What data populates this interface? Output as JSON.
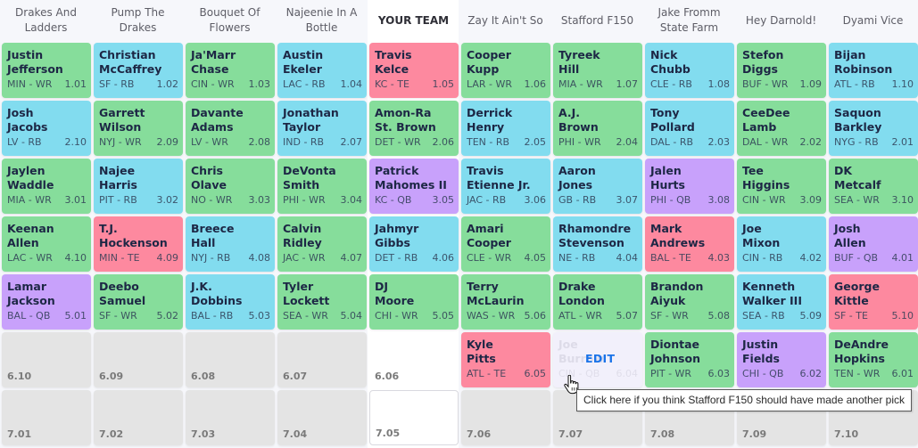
{
  "colors": {
    "WR": "#86dd9b",
    "RB": "#82dcef",
    "TE": "#fd899f",
    "QB": "#c8a1fb",
    "empty": "#e4e4e4",
    "edit": "#1a73e8"
  },
  "teams": [
    {
      "label": "Drakes And Ladders"
    },
    {
      "label": "Pump The Drakes"
    },
    {
      "label": "Bouquet Of Flowers"
    },
    {
      "label": "Najeenie In A Bottle"
    },
    {
      "label": "YOUR TEAM",
      "mine": true
    },
    {
      "label": "Zay It Ain't So"
    },
    {
      "label": "Stafford F150"
    },
    {
      "label": "Jake Fromm State Farm"
    },
    {
      "label": "Hey Darnold!"
    },
    {
      "label": "Dyami Vice"
    }
  ],
  "rounds": [
    [
      {
        "first": "Justin",
        "last": "Jefferson",
        "team": "MIN",
        "pos": "WR",
        "pick": "1.01"
      },
      {
        "first": "Christian",
        "last": "McCaffrey",
        "team": "SF",
        "pos": "RB",
        "pick": "1.02"
      },
      {
        "first": "Ja'Marr",
        "last": "Chase",
        "team": "CIN",
        "pos": "WR",
        "pick": "1.03"
      },
      {
        "first": "Austin",
        "last": "Ekeler",
        "team": "LAC",
        "pos": "RB",
        "pick": "1.04"
      },
      {
        "first": "Travis",
        "last": "Kelce",
        "team": "KC",
        "pos": "TE",
        "pick": "1.05"
      },
      {
        "first": "Cooper",
        "last": "Kupp",
        "team": "LAR",
        "pos": "WR",
        "pick": "1.06"
      },
      {
        "first": "Tyreek",
        "last": "Hill",
        "team": "MIA",
        "pos": "WR",
        "pick": "1.07"
      },
      {
        "first": "Nick",
        "last": "Chubb",
        "team": "CLE",
        "pos": "RB",
        "pick": "1.08"
      },
      {
        "first": "Stefon",
        "last": "Diggs",
        "team": "BUF",
        "pos": "WR",
        "pick": "1.09"
      },
      {
        "first": "Bijan",
        "last": "Robinson",
        "team": "ATL",
        "pos": "RB",
        "pick": "1.10"
      }
    ],
    [
      {
        "first": "Josh",
        "last": "Jacobs",
        "team": "LV",
        "pos": "RB",
        "pick": "2.10"
      },
      {
        "first": "Garrett",
        "last": "Wilson",
        "team": "NYJ",
        "pos": "WR",
        "pick": "2.09"
      },
      {
        "first": "Davante",
        "last": "Adams",
        "team": "LV",
        "pos": "WR",
        "pick": "2.08"
      },
      {
        "first": "Jonathan",
        "last": "Taylor",
        "team": "IND",
        "pos": "RB",
        "pick": "2.07"
      },
      {
        "first": "Amon-Ra",
        "last": "St. Brown",
        "team": "DET",
        "pos": "WR",
        "pick": "2.06"
      },
      {
        "first": "Derrick",
        "last": "Henry",
        "team": "TEN",
        "pos": "RB",
        "pick": "2.05"
      },
      {
        "first": "A.J.",
        "last": "Brown",
        "team": "PHI",
        "pos": "WR",
        "pick": "2.04"
      },
      {
        "first": "Tony",
        "last": "Pollard",
        "team": "DAL",
        "pos": "RB",
        "pick": "2.03"
      },
      {
        "first": "CeeDee",
        "last": "Lamb",
        "team": "DAL",
        "pos": "WR",
        "pick": "2.02"
      },
      {
        "first": "Saquon",
        "last": "Barkley",
        "team": "NYG",
        "pos": "RB",
        "pick": "2.01"
      }
    ],
    [
      {
        "first": "Jaylen",
        "last": "Waddle",
        "team": "MIA",
        "pos": "WR",
        "pick": "3.01"
      },
      {
        "first": "Najee",
        "last": "Harris",
        "team": "PIT",
        "pos": "RB",
        "pick": "3.02"
      },
      {
        "first": "Chris",
        "last": "Olave",
        "team": "NO",
        "pos": "WR",
        "pick": "3.03"
      },
      {
        "first": "DeVonta",
        "last": "Smith",
        "team": "PHI",
        "pos": "WR",
        "pick": "3.04"
      },
      {
        "first": "Patrick",
        "last": "Mahomes II",
        "team": "KC",
        "pos": "QB",
        "pick": "3.05"
      },
      {
        "first": "Travis",
        "last": "Etienne Jr.",
        "team": "JAC",
        "pos": "RB",
        "pick": "3.06"
      },
      {
        "first": "Aaron",
        "last": "Jones",
        "team": "GB",
        "pos": "RB",
        "pick": "3.07"
      },
      {
        "first": "Jalen",
        "last": "Hurts",
        "team": "PHI",
        "pos": "QB",
        "pick": "3.08"
      },
      {
        "first": "Tee",
        "last": "Higgins",
        "team": "CIN",
        "pos": "WR",
        "pick": "3.09"
      },
      {
        "first": "DK",
        "last": "Metcalf",
        "team": "SEA",
        "pos": "WR",
        "pick": "3.10"
      }
    ],
    [
      {
        "first": "Keenan",
        "last": "Allen",
        "team": "LAC",
        "pos": "WR",
        "pick": "4.10"
      },
      {
        "first": "T.J.",
        "last": "Hockenson",
        "team": "MIN",
        "pos": "TE",
        "pick": "4.09"
      },
      {
        "first": "Breece",
        "last": "Hall",
        "team": "NYJ",
        "pos": "RB",
        "pick": "4.08"
      },
      {
        "first": "Calvin",
        "last": "Ridley",
        "team": "JAC",
        "pos": "WR",
        "pick": "4.07"
      },
      {
        "first": "Jahmyr",
        "last": "Gibbs",
        "team": "DET",
        "pos": "RB",
        "pick": "4.06"
      },
      {
        "first": "Amari",
        "last": "Cooper",
        "team": "CLE",
        "pos": "WR",
        "pick": "4.05"
      },
      {
        "first": "Rhamondre",
        "last": "Stevenson",
        "team": "NE",
        "pos": "RB",
        "pick": "4.04"
      },
      {
        "first": "Mark",
        "last": "Andrews",
        "team": "BAL",
        "pos": "TE",
        "pick": "4.03"
      },
      {
        "first": "Joe",
        "last": "Mixon",
        "team": "CIN",
        "pos": "RB",
        "pick": "4.02"
      },
      {
        "first": "Josh",
        "last": "Allen",
        "team": "BUF",
        "pos": "QB",
        "pick": "4.01"
      }
    ],
    [
      {
        "first": "Lamar",
        "last": "Jackson",
        "team": "BAL",
        "pos": "QB",
        "pick": "5.01"
      },
      {
        "first": "Deebo",
        "last": "Samuel",
        "team": "SF",
        "pos": "WR",
        "pick": "5.02"
      },
      {
        "first": "J.K.",
        "last": "Dobbins",
        "team": "BAL",
        "pos": "RB",
        "pick": "5.03"
      },
      {
        "first": "Tyler",
        "last": "Lockett",
        "team": "SEA",
        "pos": "WR",
        "pick": "5.04"
      },
      {
        "first": "DJ",
        "last": "Moore",
        "team": "CHI",
        "pos": "WR",
        "pick": "5.05"
      },
      {
        "first": "Terry",
        "last": "McLaurin",
        "team": "WAS",
        "pos": "WR",
        "pick": "5.06"
      },
      {
        "first": "Drake",
        "last": "London",
        "team": "ATL",
        "pos": "WR",
        "pick": "5.07"
      },
      {
        "first": "Brandon",
        "last": "Aiyuk",
        "team": "SF",
        "pos": "WR",
        "pick": "5.08"
      },
      {
        "first": "Kenneth",
        "last": "Walker III",
        "team": "SEA",
        "pos": "RB",
        "pick": "5.09"
      },
      {
        "first": "George",
        "last": "Kittle",
        "team": "SF",
        "pos": "TE",
        "pick": "5.10"
      }
    ],
    [
      {
        "empty": true,
        "pick": "6.10"
      },
      {
        "empty": true,
        "pick": "6.09"
      },
      {
        "empty": true,
        "pick": "6.08"
      },
      {
        "empty": true,
        "pick": "6.07"
      },
      {
        "empty": true,
        "mine": true,
        "pick": "6.06"
      },
      {
        "first": "Kyle",
        "last": "Pitts",
        "team": "ATL",
        "pos": "TE",
        "pick": "6.05"
      },
      {
        "first": "Joe",
        "last": "Burrow",
        "team": "CIN",
        "pos": "QB",
        "pick": "6.04",
        "hover": true,
        "edit_label": "EDIT"
      },
      {
        "first": "Diontae",
        "last": "Johnson",
        "team": "PIT",
        "pos": "WR",
        "pick": "6.03"
      },
      {
        "first": "Justin",
        "last": "Fields",
        "team": "CHI",
        "pos": "QB",
        "pick": "6.02"
      },
      {
        "first": "DeAndre",
        "last": "Hopkins",
        "team": "TEN",
        "pos": "WR",
        "pick": "6.01"
      }
    ],
    [
      {
        "empty": true,
        "pick": "7.01"
      },
      {
        "empty": true,
        "pick": "7.02"
      },
      {
        "empty": true,
        "pick": "7.03"
      },
      {
        "empty": true,
        "pick": "7.04"
      },
      {
        "empty": true,
        "mine": true,
        "outlined": true,
        "pick": "7.05"
      },
      {
        "empty": true,
        "pick": "7.06"
      },
      {
        "empty": true,
        "pick": "7.07"
      },
      {
        "empty": true,
        "pick": "7.08"
      },
      {
        "empty": true,
        "pick": "7.09"
      },
      {
        "empty": true,
        "pick": "7.10"
      }
    ]
  ],
  "tooltip": {
    "text": "Click here if you think Stafford F150 should have made another pick"
  }
}
